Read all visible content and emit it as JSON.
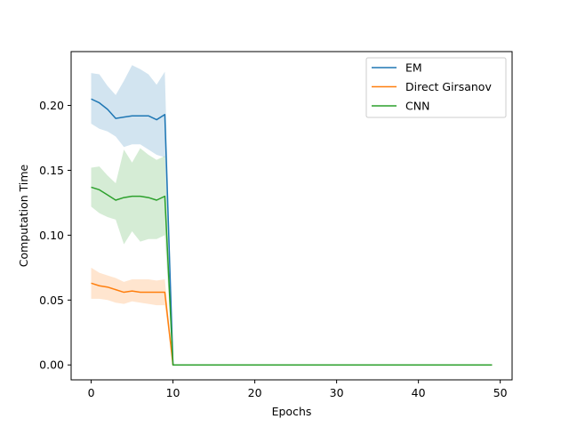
{
  "chart_data": {
    "type": "line",
    "title": "",
    "xlabel": "Epochs",
    "ylabel": "Computation Time",
    "xlim": [
      -2.45,
      51.45
    ],
    "ylim": [
      -0.0115,
      0.2415
    ],
    "xticks": [
      0,
      10,
      20,
      30,
      40,
      50
    ],
    "xtick_labels": [
      "0",
      "10",
      "20",
      "30",
      "40",
      "50"
    ],
    "yticks": [
      0.0,
      0.05,
      0.1,
      0.15,
      0.2
    ],
    "ytick_labels": [
      "0.00",
      "0.05",
      "0.10",
      "0.15",
      "0.20"
    ],
    "grid": false,
    "legend_position": "top-right",
    "x": [
      0,
      1,
      2,
      3,
      4,
      5,
      6,
      7,
      8,
      9,
      10,
      11,
      12,
      13,
      14,
      15,
      16,
      17,
      18,
      19,
      20,
      21,
      22,
      23,
      24,
      25,
      26,
      27,
      28,
      29,
      30,
      31,
      32,
      33,
      34,
      35,
      36,
      37,
      38,
      39,
      40,
      41,
      42,
      43,
      44,
      45,
      46,
      47,
      48,
      49
    ],
    "series": [
      {
        "name": "EM",
        "color": "#1f77b4",
        "values": [
          0.205,
          0.202,
          0.197,
          0.19,
          0.191,
          0.192,
          0.192,
          0.192,
          0.189,
          0.193,
          0,
          0,
          0,
          0,
          0,
          0,
          0,
          0,
          0,
          0,
          0,
          0,
          0,
          0,
          0,
          0,
          0,
          0,
          0,
          0,
          0,
          0,
          0,
          0,
          0,
          0,
          0,
          0,
          0,
          0,
          0,
          0,
          0,
          0,
          0,
          0,
          0,
          0,
          0,
          0
        ],
        "lower": [
          0.186,
          0.182,
          0.18,
          0.176,
          0.168,
          0.17,
          0.17,
          0.166,
          0.162,
          0.16,
          0,
          0,
          0,
          0,
          0,
          0,
          0,
          0,
          0,
          0,
          0,
          0,
          0,
          0,
          0,
          0,
          0,
          0,
          0,
          0,
          0,
          0,
          0,
          0,
          0,
          0,
          0,
          0,
          0,
          0,
          0,
          0,
          0,
          0,
          0,
          0,
          0,
          0,
          0,
          0
        ],
        "upper": [
          0.225,
          0.224,
          0.215,
          0.208,
          0.219,
          0.231,
          0.228,
          0.224,
          0.216,
          0.226,
          0,
          0,
          0,
          0,
          0,
          0,
          0,
          0,
          0,
          0,
          0,
          0,
          0,
          0,
          0,
          0,
          0,
          0,
          0,
          0,
          0,
          0,
          0,
          0,
          0,
          0,
          0,
          0,
          0,
          0,
          0,
          0,
          0,
          0,
          0,
          0,
          0,
          0,
          0,
          0
        ]
      },
      {
        "name": "Direct Girsanov",
        "color": "#ff7f0e",
        "values": [
          0.063,
          0.061,
          0.06,
          0.058,
          0.056,
          0.057,
          0.056,
          0.056,
          0.056,
          0.056,
          0,
          0,
          0,
          0,
          0,
          0,
          0,
          0,
          0,
          0,
          0,
          0,
          0,
          0,
          0,
          0,
          0,
          0,
          0,
          0,
          0,
          0,
          0,
          0,
          0,
          0,
          0,
          0,
          0,
          0,
          0,
          0,
          0,
          0,
          0,
          0,
          0,
          0,
          0,
          0
        ],
        "lower": [
          0.051,
          0.051,
          0.05,
          0.048,
          0.047,
          0.049,
          0.048,
          0.047,
          0.046,
          0.046,
          0,
          0,
          0,
          0,
          0,
          0,
          0,
          0,
          0,
          0,
          0,
          0,
          0,
          0,
          0,
          0,
          0,
          0,
          0,
          0,
          0,
          0,
          0,
          0,
          0,
          0,
          0,
          0,
          0,
          0,
          0,
          0,
          0,
          0,
          0,
          0,
          0,
          0,
          0,
          0
        ],
        "upper": [
          0.075,
          0.071,
          0.069,
          0.067,
          0.064,
          0.066,
          0.066,
          0.066,
          0.065,
          0.066,
          0,
          0,
          0,
          0,
          0,
          0,
          0,
          0,
          0,
          0,
          0,
          0,
          0,
          0,
          0,
          0,
          0,
          0,
          0,
          0,
          0,
          0,
          0,
          0,
          0,
          0,
          0,
          0,
          0,
          0,
          0,
          0,
          0,
          0,
          0,
          0,
          0,
          0,
          0,
          0
        ]
      },
      {
        "name": "CNN",
        "color": "#2ca02c",
        "values": [
          0.137,
          0.135,
          0.131,
          0.127,
          0.129,
          0.13,
          0.13,
          0.129,
          0.127,
          0.13,
          0,
          0,
          0,
          0,
          0,
          0,
          0,
          0,
          0,
          0,
          0,
          0,
          0,
          0,
          0,
          0,
          0,
          0,
          0,
          0,
          0,
          0,
          0,
          0,
          0,
          0,
          0,
          0,
          0,
          0,
          0,
          0,
          0,
          0,
          0,
          0,
          0,
          0,
          0,
          0
        ],
        "lower": [
          0.122,
          0.117,
          0.114,
          0.112,
          0.093,
          0.103,
          0.095,
          0.097,
          0.097,
          0.1,
          0,
          0,
          0,
          0,
          0,
          0,
          0,
          0,
          0,
          0,
          0,
          0,
          0,
          0,
          0,
          0,
          0,
          0,
          0,
          0,
          0,
          0,
          0,
          0,
          0,
          0,
          0,
          0,
          0,
          0,
          0,
          0,
          0,
          0,
          0,
          0,
          0,
          0,
          0,
          0
        ],
        "upper": [
          0.152,
          0.153,
          0.146,
          0.14,
          0.166,
          0.156,
          0.167,
          0.162,
          0.158,
          0.161,
          0,
          0,
          0,
          0,
          0,
          0,
          0,
          0,
          0,
          0,
          0,
          0,
          0,
          0,
          0,
          0,
          0,
          0,
          0,
          0,
          0,
          0,
          0,
          0,
          0,
          0,
          0,
          0,
          0,
          0,
          0,
          0,
          0,
          0,
          0,
          0,
          0,
          0,
          0,
          0
        ]
      }
    ]
  }
}
